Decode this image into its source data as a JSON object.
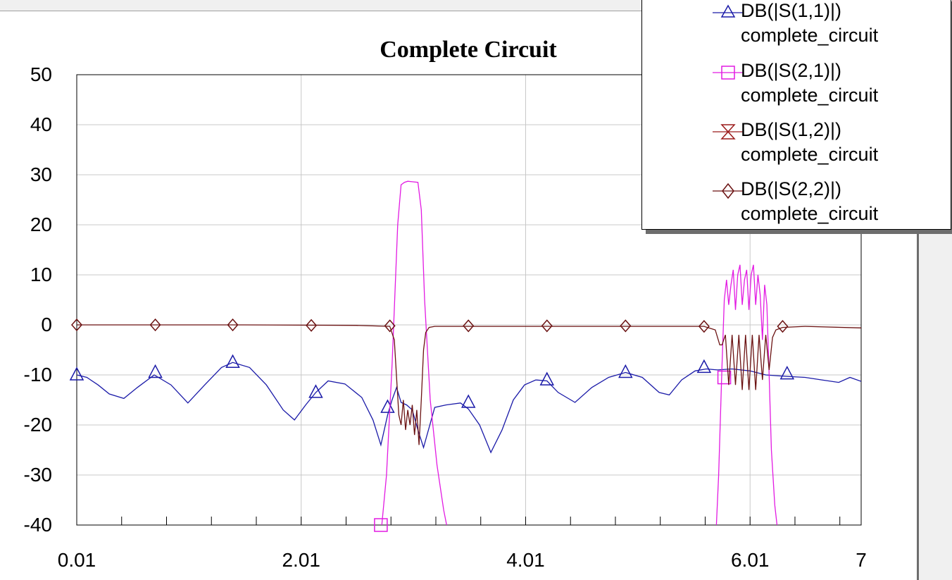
{
  "chart_data": {
    "type": "line",
    "title": "Complete Circuit",
    "xlabel": "",
    "ylabel": "",
    "xlim": [
      0.01,
      7
    ],
    "ylim": [
      -40,
      50
    ],
    "x_ticks": [
      "0.01",
      "2.01",
      "4.01",
      "6.01",
      "7"
    ],
    "x_tick_values": [
      0.01,
      2.01,
      4.01,
      6.01,
      7
    ],
    "y_ticks": [
      "50",
      "40",
      "30",
      "20",
      "10",
      "0",
      "-10",
      "-20",
      "-30",
      "-40"
    ],
    "y_tick_values": [
      50,
      40,
      30,
      20,
      10,
      0,
      -10,
      -20,
      -30,
      -40
    ],
    "grid": true,
    "legend_position": "top-right",
    "series": [
      {
        "name": "DB(|S(1,1)|)",
        "sub": "complete_circuit",
        "color": "#1a1aa8",
        "marker": "triangle",
        "x": [
          0.01,
          0.1,
          0.2,
          0.3,
          0.43,
          0.55,
          0.7,
          0.85,
          1.0,
          1.15,
          1.3,
          1.4,
          1.55,
          1.7,
          1.85,
          1.95,
          2.05,
          2.14,
          2.25,
          2.4,
          2.55,
          2.65,
          2.72,
          2.78,
          2.82,
          2.86,
          2.9,
          2.95,
          3.0,
          3.05,
          3.1,
          3.2,
          3.3,
          3.43,
          3.5,
          3.6,
          3.7,
          3.8,
          3.9,
          4.0,
          4.1,
          4.2,
          4.3,
          4.45,
          4.6,
          4.75,
          4.9,
          5.05,
          5.2,
          5.29,
          5.4,
          5.52,
          5.62,
          5.72,
          5.85,
          6.01,
          6.15,
          6.34,
          6.5,
          6.65,
          6.8,
          6.9,
          7.0
        ],
        "values": [
          -10,
          -10.5,
          -12,
          -13.8,
          -14.7,
          -12.5,
          -10,
          -12,
          -15.6,
          -12,
          -8.5,
          -7.5,
          -8.5,
          -12,
          -17,
          -19,
          -16,
          -13.5,
          -11.2,
          -11.8,
          -14.5,
          -19,
          -24,
          -18,
          -15,
          -12.5,
          -15.5,
          -16,
          -17,
          -21,
          -24.5,
          -16.5,
          -16,
          -15.6,
          -16.8,
          -20,
          -25.5,
          -21,
          -15,
          -12,
          -11,
          -11.2,
          -13.5,
          -15.5,
          -12.5,
          -10.5,
          -9.5,
          -10.5,
          -13.5,
          -14,
          -11,
          -9.2,
          -8.8,
          -9,
          -8.8,
          -9.2,
          -10,
          -10.3,
          -10.5,
          -11,
          -11.5,
          -10.5,
          -11.3
        ],
        "marker_x": [
          0.01,
          0.71,
          1.4,
          2.14,
          2.78,
          3.5,
          4.2,
          4.9,
          5.6,
          6.34
        ],
        "marker_y": [
          -10,
          -9.5,
          -7.5,
          -13.5,
          -16.5,
          -15.5,
          -11,
          -9.5,
          -8.5,
          -9.8
        ]
      },
      {
        "name": "DB(|S(2,1)|)",
        "sub": "complete_circuit",
        "color": "#e21ae2",
        "marker": "square",
        "x": [
          2.72,
          2.77,
          2.82,
          2.87,
          2.9,
          2.93,
          2.96,
          3.0,
          3.05,
          3.08,
          3.11,
          3.16,
          3.22,
          3.28,
          3.35,
          null,
          5.7,
          5.73,
          5.76,
          5.78,
          5.8,
          5.82,
          5.84,
          5.86,
          5.88,
          5.9,
          5.92,
          5.94,
          5.96,
          5.98,
          6.0,
          6.02,
          6.04,
          6.06,
          6.08,
          6.1,
          6.12,
          6.14,
          6.16,
          6.18,
          6.2,
          6.23,
          6.26,
          6.3
        ],
        "values": [
          -42,
          -30,
          -8,
          20,
          28,
          28.5,
          28.7,
          28.6,
          28.5,
          23,
          5,
          -15,
          -28,
          -37,
          -45,
          null,
          -45,
          -30,
          -8,
          5,
          9,
          4,
          8,
          11,
          3,
          10,
          12,
          4,
          9,
          11,
          3,
          10,
          12,
          4,
          10,
          6,
          -3,
          8,
          4,
          -10,
          -25,
          -36,
          -42,
          -45
        ],
        "marker_x": [
          2.72,
          5.78
        ],
        "marker_y": [
          -40,
          -10.5
        ]
      },
      {
        "name": "DB(|S(1,2)|)",
        "sub": "complete_circuit",
        "color": "#9b1a1a",
        "marker": "hourglass",
        "x": [],
        "values": [],
        "marker_x": [],
        "marker_y": []
      },
      {
        "name": "DB(|S(2,2)|)",
        "sub": "complete_circuit",
        "color": "#6b1212",
        "marker": "diamond",
        "x": [
          0.01,
          1.5,
          2.5,
          2.8,
          2.84,
          2.88,
          2.9,
          2.92,
          2.94,
          2.96,
          2.98,
          3.0,
          3.02,
          3.04,
          3.06,
          3.08,
          3.1,
          3.12,
          3.15,
          3.2,
          4.5,
          5.6,
          5.7,
          5.74,
          5.76,
          5.79,
          5.82,
          5.85,
          5.88,
          5.91,
          5.94,
          5.97,
          6.0,
          6.03,
          6.06,
          6.09,
          6.12,
          6.15,
          6.18,
          6.21,
          6.24,
          6.3,
          6.5,
          7.0
        ],
        "values": [
          0,
          0,
          -0.1,
          -0.3,
          -3,
          -18,
          -20,
          -15,
          -21,
          -17,
          -20,
          -16,
          -22,
          -17,
          -24,
          -15,
          -5,
          -1.5,
          -0.5,
          -0.3,
          -0.3,
          -0.3,
          -1,
          -4,
          -4,
          -2,
          -12,
          -2,
          -12,
          -2,
          -13,
          -2,
          -13,
          -2,
          -13,
          -2,
          -11,
          -2,
          -9,
          -2.5,
          -1,
          -0.5,
          -0.3,
          -0.6
        ],
        "marker_x": [
          0.01,
          0.71,
          1.4,
          2.1,
          2.8,
          3.5,
          4.2,
          4.9,
          5.6,
          6.3
        ],
        "marker_y": [
          0,
          0,
          0,
          -0.1,
          -0.2,
          -0.2,
          -0.2,
          -0.2,
          -0.3,
          -0.3
        ]
      }
    ]
  }
}
